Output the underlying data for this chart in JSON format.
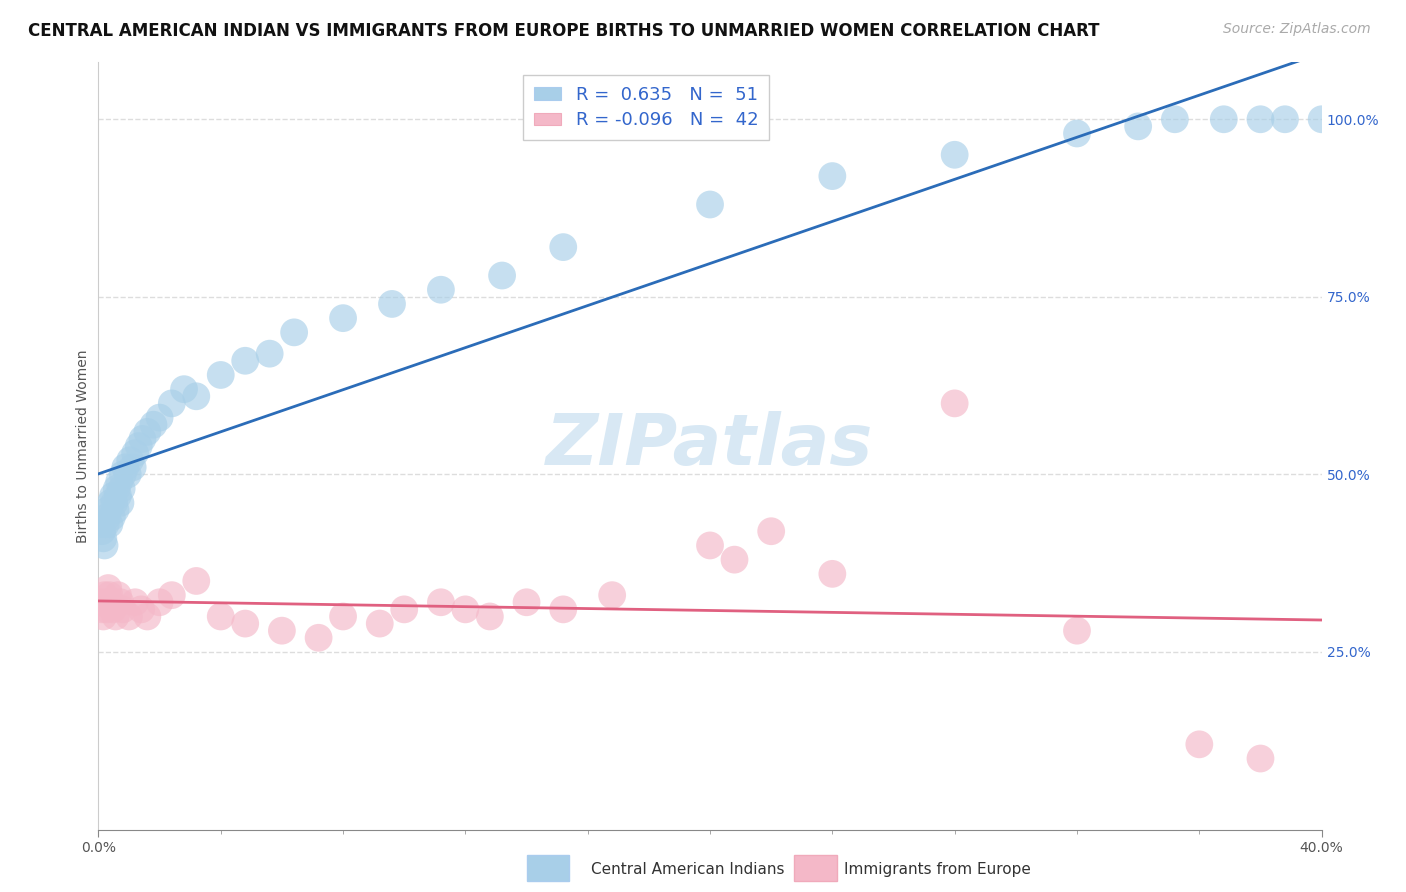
{
  "title": "CENTRAL AMERICAN INDIAN VS IMMIGRANTS FROM EUROPE BIRTHS TO UNMARRIED WOMEN CORRELATION CHART",
  "source": "Source: ZipAtlas.com",
  "ylabel": "Births to Unmarried Women",
  "legend_label1": "Central American Indians",
  "legend_label2": "Immigrants from Europe",
  "r1": 0.635,
  "n1": 51,
  "r2": -0.096,
  "n2": 42,
  "color_blue": "#a8cfe8",
  "color_pink": "#f4b8c8",
  "color_blue_line": "#2b6cb8",
  "color_pink_line": "#e06080",
  "color_blue_text": "#3366cc",
  "watermark_color": "#c8dff0",
  "grid_color": "#dddddd",
  "background_color": "#ffffff",
  "title_fontsize": 12,
  "source_fontsize": 10,
  "axis_label_fontsize": 10,
  "tick_label_fontsize": 10,
  "legend_fontsize": 13,
  "scatter_size": 400,
  "blue_scatter_x": [
    0.002,
    0.003,
    0.004,
    0.005,
    0.006,
    0.007,
    0.008,
    0.009,
    0.01,
    0.011,
    0.012,
    0.013,
    0.014,
    0.015,
    0.016,
    0.017,
    0.018,
    0.019,
    0.02,
    0.022,
    0.024,
    0.026,
    0.028,
    0.03,
    0.033,
    0.036,
    0.04,
    0.045,
    0.05,
    0.06,
    0.07,
    0.08,
    0.1,
    0.12,
    0.14,
    0.16,
    0.2,
    0.24,
    0.28,
    0.33,
    0.38,
    0.5,
    0.6,
    0.7,
    0.8,
    0.85,
    0.88,
    0.92,
    0.95,
    0.97,
    1.0
  ],
  "blue_scatter_y": [
    0.43,
    0.42,
    0.41,
    0.4,
    0.43,
    0.44,
    0.45,
    0.43,
    0.46,
    0.44,
    0.47,
    0.46,
    0.45,
    0.48,
    0.47,
    0.49,
    0.46,
    0.48,
    0.5,
    0.51,
    0.5,
    0.52,
    0.51,
    0.53,
    0.54,
    0.55,
    0.56,
    0.57,
    0.58,
    0.6,
    0.62,
    0.61,
    0.64,
    0.66,
    0.67,
    0.7,
    0.72,
    0.74,
    0.76,
    0.78,
    0.82,
    0.88,
    0.92,
    0.95,
    0.98,
    0.99,
    1.0,
    1.0,
    1.0,
    1.0,
    1.0
  ],
  "pink_scatter_x": [
    0.002,
    0.003,
    0.004,
    0.005,
    0.006,
    0.007,
    0.008,
    0.009,
    0.01,
    0.012,
    0.014,
    0.016,
    0.018,
    0.02,
    0.025,
    0.03,
    0.035,
    0.04,
    0.05,
    0.06,
    0.08,
    0.1,
    0.12,
    0.15,
    0.18,
    0.2,
    0.23,
    0.25,
    0.28,
    0.3,
    0.32,
    0.35,
    0.38,
    0.42,
    0.5,
    0.52,
    0.55,
    0.6,
    0.7,
    0.8,
    0.9,
    0.95
  ],
  "pink_scatter_y": [
    0.32,
    0.31,
    0.3,
    0.33,
    0.32,
    0.31,
    0.34,
    0.33,
    0.32,
    0.31,
    0.3,
    0.33,
    0.32,
    0.31,
    0.3,
    0.32,
    0.31,
    0.3,
    0.32,
    0.33,
    0.35,
    0.3,
    0.29,
    0.28,
    0.27,
    0.3,
    0.29,
    0.31,
    0.32,
    0.31,
    0.3,
    0.32,
    0.31,
    0.33,
    0.4,
    0.38,
    0.42,
    0.36,
    0.6,
    0.28,
    0.12,
    0.1
  ],
  "yticks": [
    0.25,
    0.5,
    0.75,
    1.0
  ],
  "ytick_labels": [
    "25.0%",
    "50.0%",
    "75.0%",
    "100.0%"
  ],
  "xtick_positions": [
    0.0,
    1.0
  ],
  "xtick_labels": [
    "0.0%",
    "40.0%"
  ],
  "xmin": 0.0,
  "xmax": 1.0,
  "ymin": 0.0,
  "ymax": 1.08
}
